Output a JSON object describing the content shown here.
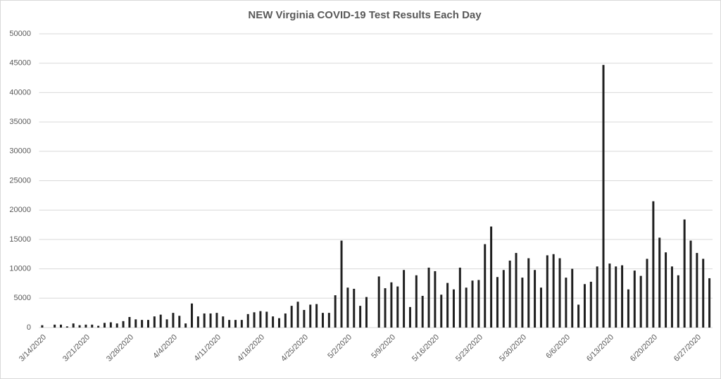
{
  "chart_data": {
    "type": "bar",
    "title": "NEW Virginia COVID-19 Test Results Each Day",
    "categories": [
      "3/14",
      null,
      null,
      null,
      null,
      null,
      null,
      "3/21",
      null,
      null,
      null,
      null,
      null,
      null,
      "3/28",
      null,
      null,
      null,
      null,
      null,
      null,
      "4/4",
      null,
      null,
      null,
      null,
      null,
      null,
      "4/11",
      null,
      null,
      null,
      null,
      null,
      null,
      "4/18",
      null,
      null,
      null,
      null,
      null,
      null,
      "4/25",
      null,
      null,
      null,
      null,
      null,
      null,
      "5/2",
      null,
      null,
      null,
      null,
      null,
      null,
      "5/9",
      null,
      null,
      null,
      null,
      null,
      null,
      "5/16",
      null,
      null,
      null,
      null,
      null,
      null,
      "5/23",
      null,
      null,
      null,
      null,
      null,
      null,
      "5/30",
      null,
      null,
      null,
      null,
      null,
      null,
      "6/6",
      null,
      null,
      null,
      null,
      null,
      null,
      "6/13",
      null,
      null,
      null,
      null,
      null,
      null,
      "6/20",
      null,
      null,
      null,
      null,
      null,
      null,
      "6/27",
      null,
      null
    ],
    "category_labels": [
      "3/14/2020",
      "3/21/2020",
      "3/28/2020",
      "4/4/2020",
      "4/11/2020",
      "4/18/2020",
      "4/25/2020",
      "5/2/2020",
      "5/9/2020",
      "5/16/2020",
      "5/23/2020",
      "5/30/2020",
      "6/6/2020",
      "6/13/2020",
      "6/20/2020",
      "6/27/2020"
    ],
    "values": [
      400,
      0,
      500,
      500,
      200,
      700,
      400,
      500,
      500,
      300,
      800,
      900,
      700,
      1100,
      1800,
      1400,
      1300,
      1300,
      1900,
      2200,
      1400,
      2500,
      2000,
      700,
      4100,
      1900,
      2400,
      2400,
      2500,
      1900,
      1300,
      1300,
      1300,
      2300,
      2600,
      2800,
      2700,
      1900,
      1600,
      2400,
      3700,
      4400,
      3000,
      3900,
      4000,
      2500,
      2500,
      5500,
      14800,
      6800,
      6600,
      3700,
      5200,
      0,
      8700,
      6700,
      7700,
      7000,
      9800,
      3500,
      8900,
      5400,
      10200,
      9600,
      5600,
      7600,
      6500,
      10200,
      6800,
      8000,
      8100,
      14200,
      17200,
      8600,
      9800,
      11400,
      12700,
      8500,
      11800,
      9800,
      6800,
      12300,
      12500,
      11800,
      8500,
      10000,
      3900,
      7400,
      7800,
      10400,
      44700,
      10900,
      10400,
      10600,
      6500,
      9700,
      8800,
      11700,
      21500,
      15300,
      12800,
      10400,
      8900,
      18400,
      14800,
      12700,
      11700,
      8400
    ],
    "color": "#1f1f1f",
    "ylim": [
      0,
      50000
    ],
    "yticks": [
      0,
      5000,
      10000,
      15000,
      20000,
      25000,
      30000,
      35000,
      40000,
      45000,
      50000
    ],
    "grid": true
  }
}
